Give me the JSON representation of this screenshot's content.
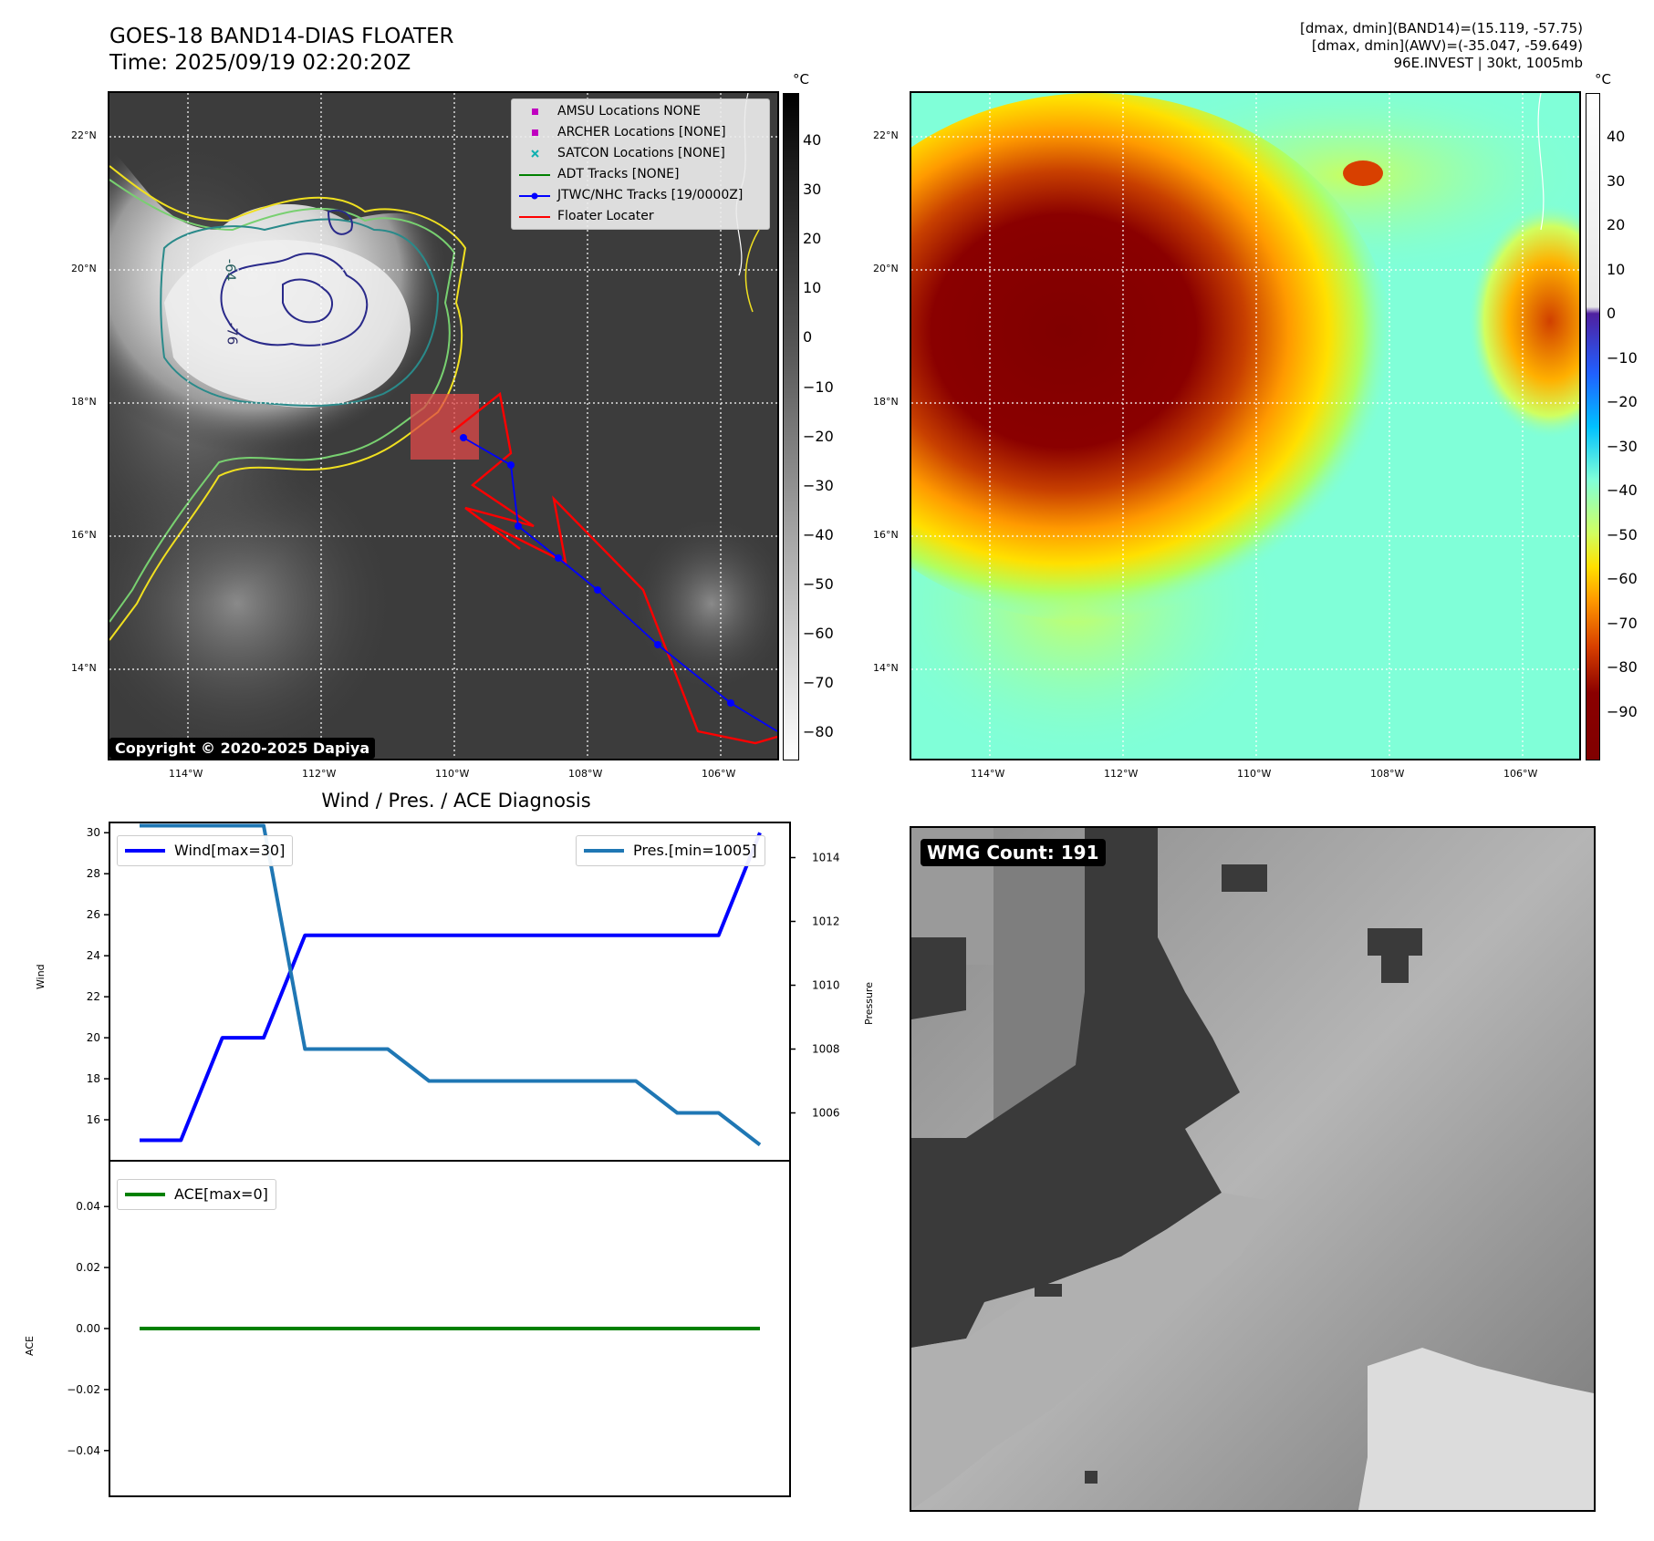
{
  "header": {
    "title_line1": "GOES-18 BAND14-DIAS FLOATER",
    "title_line2": "Time: 2025/09/19 02:20:20Z",
    "info_line1": "[dmax, dmin](BAND14)=(15.119, -57.75)",
    "info_line2": "[dmax, dmin](AWV)=(-35.047, -59.649)",
    "info_line3": "96E.INVEST | 30kt, 1005mb"
  },
  "map": {
    "lat_labels": [
      "22°N",
      "20°N",
      "18°N",
      "16°N",
      "14°N"
    ],
    "lon_labels": [
      "114°W",
      "112°W",
      "110°W",
      "108°W",
      "106°W"
    ],
    "contour_labels": [
      "-64",
      "-76"
    ],
    "copyright": "Copyright © 2020-2025 Dapiya",
    "legend": [
      {
        "label": "AMSU Locations NONE",
        "color": "#c000c0",
        "symbol": "square"
      },
      {
        "label": "ARCHER Locations [NONE]",
        "color": "#c000c0",
        "symbol": "square"
      },
      {
        "label": "SATCON Locations [NONE]",
        "color": "#10b0b0",
        "symbol": "x"
      },
      {
        "label": "ADT Tracks [NONE]",
        "color": "#008000",
        "symbol": "line"
      },
      {
        "label": "JTWC/NHC Tracks [19/0000Z]",
        "color": "#0000ff",
        "symbol": "line-dot"
      },
      {
        "label": "Floater Locater",
        "color": "#ff0000",
        "symbol": "line"
      }
    ]
  },
  "colorbar_left": {
    "unit": "°C",
    "ticks": [
      "40",
      "30",
      "20",
      "10",
      "0",
      "−10",
      "−20",
      "−30",
      "−40",
      "−50",
      "−60",
      "−70",
      "−80"
    ]
  },
  "colorbar_right": {
    "unit": "°C",
    "ticks": [
      "40",
      "30",
      "20",
      "10",
      "0",
      "−10",
      "−20",
      "−30",
      "−40",
      "−50",
      "−60",
      "−70",
      "−80",
      "−90"
    ]
  },
  "diagnosis": {
    "title": "Wind / Pres. / ACE Diagnosis",
    "wind_ylabel": "Wind",
    "pres_ylabel": "Pressure",
    "ace_ylabel": "ACE",
    "wind_legend": "Wind[max=30]",
    "pres_legend": "Pres.[min=1005]",
    "ace_legend": "ACE[max=0]",
    "wind_ticks": [
      "30",
      "28",
      "26",
      "24",
      "22",
      "20",
      "18",
      "16"
    ],
    "pres_ticks": [
      "1014",
      "1012",
      "1010",
      "1008",
      "1006"
    ],
    "ace_ticks": [
      "0.04",
      "0.02",
      "0.00",
      "−0.02",
      "−0.04"
    ]
  },
  "wmg": {
    "label": "WMG Count: 191"
  },
  "colors": {
    "wind": "#0000ff",
    "pressure": "#1f77b4",
    "ace": "#008000",
    "track": "#0000ff",
    "floater": "#ff0000"
  },
  "chart_data": [
    {
      "type": "line",
      "name": "wind",
      "x": [
        0,
        1,
        2,
        3,
        4,
        5,
        6,
        7,
        8,
        9,
        10,
        11,
        12,
        13,
        14,
        15
      ],
      "series": [
        {
          "name": "Wind[max=30]",
          "values": [
            15,
            15,
            20,
            20,
            25,
            25,
            25,
            25,
            25,
            25,
            25,
            25,
            25,
            25,
            25,
            30
          ]
        }
      ],
      "ylabel": "Wind",
      "ylim": [
        14,
        30.5
      ]
    },
    {
      "type": "line",
      "name": "pressure",
      "x": [
        0,
        1,
        2,
        3,
        4,
        5,
        6,
        7,
        8,
        9,
        10,
        11,
        12,
        13,
        14,
        15
      ],
      "series": [
        {
          "name": "Pres.[min=1005]",
          "values": [
            1015,
            1015,
            1015,
            1015,
            1008,
            1008,
            1008,
            1007,
            1007,
            1007,
            1007,
            1007,
            1007,
            1006,
            1006,
            1005
          ]
        }
      ],
      "ylabel": "Pressure",
      "ylim": [
        1004.5,
        1015.1
      ]
    },
    {
      "type": "line",
      "name": "ace",
      "x": [
        0,
        1,
        2,
        3,
        4,
        5,
        6,
        7,
        8,
        9,
        10,
        11,
        12,
        13,
        14,
        15
      ],
      "series": [
        {
          "name": "ACE[max=0]",
          "values": [
            0,
            0,
            0,
            0,
            0,
            0,
            0,
            0,
            0,
            0,
            0,
            0,
            0,
            0,
            0,
            0
          ]
        }
      ],
      "ylabel": "ACE",
      "ylim": [
        -0.055,
        0.055
      ]
    }
  ]
}
